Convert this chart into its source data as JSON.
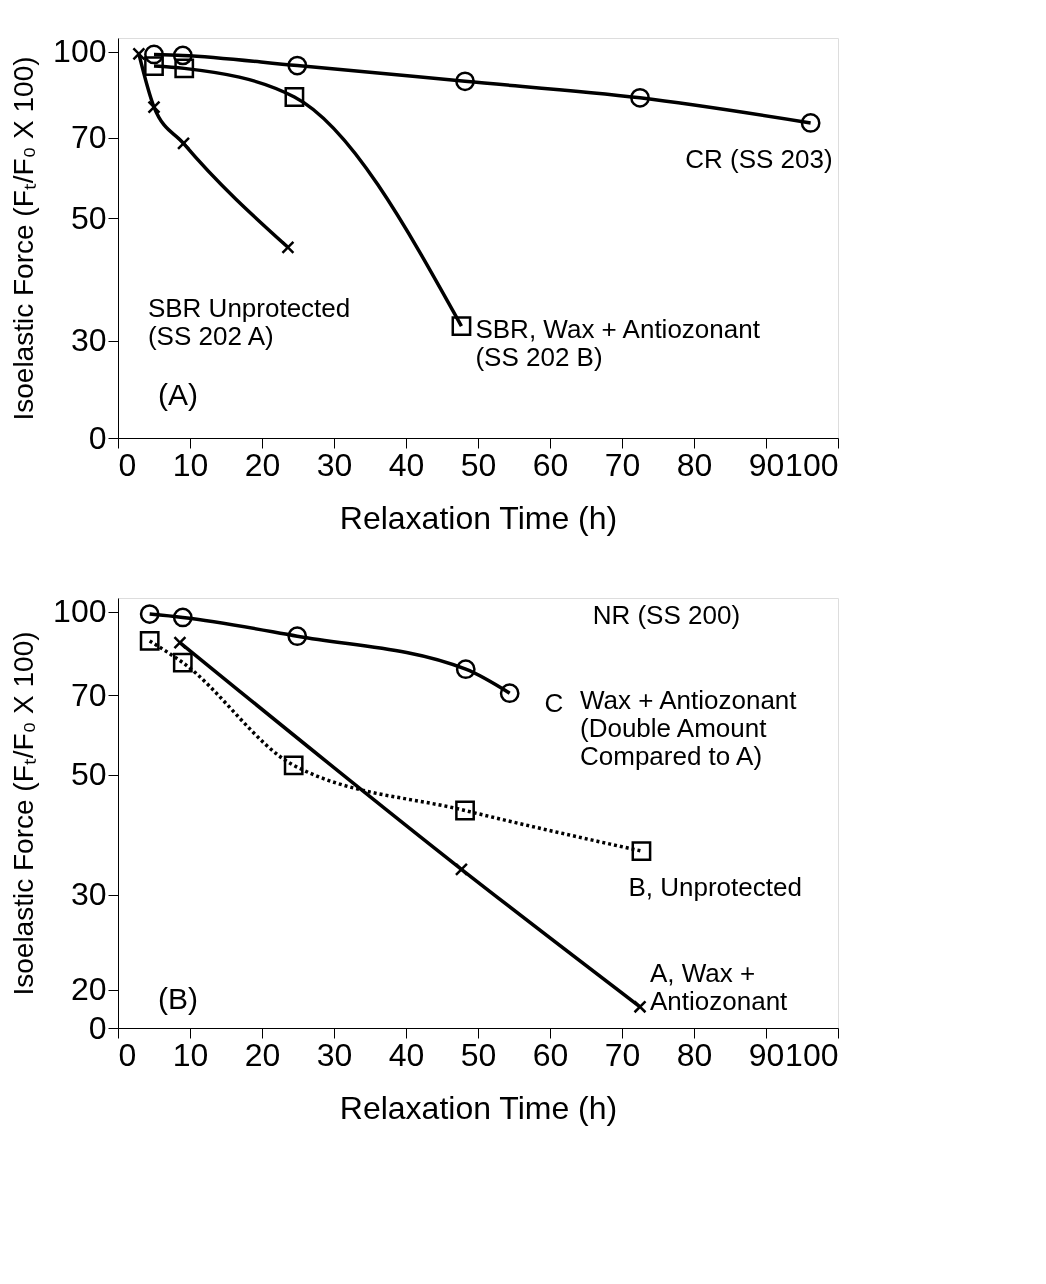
{
  "chart_data": [
    {
      "type": "line",
      "xlabel": "Relaxation Time (h)",
      "ylabel": "Isoelastic Force (Fₜ/F₀ X 100)",
      "log": "y",
      "xlim": [
        0,
        100
      ],
      "xticks": [
        0,
        10,
        20,
        30,
        40,
        50,
        60,
        70,
        80,
        90,
        100
      ],
      "ylim": [
        0,
        106
      ],
      "yticks": [
        0,
        30,
        50,
        70,
        100
      ],
      "grid": false,
      "annotations": [
        "(A)"
      ],
      "series": [
        {
          "name": "CR (SS 203)",
          "color": "#000000",
          "marker": "circle",
          "line_style": "solid",
          "x": [
            5.0,
            9.0,
            24.9,
            48.2,
            72.5,
            96.2
          ],
          "values": [
            99,
            98.6,
            94.5,
            88.5,
            82.6,
            74.4
          ]
        },
        {
          "name": "SBR Unprotected\n(SS 202 A)",
          "color": "#000000",
          "marker": "cross",
          "line_style": "solid",
          "x": [
            2.9,
            5.0,
            9.1,
            23.6
          ],
          "values": [
            99.2,
            79.5,
            68.3,
            44.3
          ]
        },
        {
          "name": "SBR, Wax + Antiozonant\n(SS 202 B)",
          "color": "#000000",
          "marker": "square",
          "line_style": "solid",
          "x": [
            5.0,
            9.2,
            24.5,
            47.7
          ],
          "values": [
            94.3,
            93.4,
            82.9,
            31.9
          ]
        }
      ]
    },
    {
      "type": "line",
      "xlabel": "Relaxation Time (h)",
      "ylabel": "Isoelastic Force (Fₜ/F₀ X 100)",
      "log": "y",
      "xlim": [
        0,
        100
      ],
      "xticks": [
        0,
        10,
        20,
        30,
        40,
        50,
        60,
        70,
        80,
        90,
        100
      ],
      "ylim": [
        0,
        106
      ],
      "yticks": [
        0,
        20,
        30,
        50,
        70,
        100
      ],
      "grid": false,
      "annotations": [
        "(B)",
        "C",
        "Wax + Antiozonant\n(Double Amount\nCompared to A)"
      ],
      "series": [
        {
          "name": "NR (SS 200)",
          "color": "#000000",
          "marker": "circle",
          "line_style": "solid",
          "x": [
            4.4,
            9.0,
            24.9,
            48.3,
            54.4
          ],
          "values": [
            99.0,
            97.6,
            90.1,
            78.3,
            70.7
          ]
        },
        {
          "name": "B, Unprotected",
          "color": "#000000",
          "marker": "square",
          "line_style": "dotted",
          "x": [
            4.4,
            9.0,
            24.4,
            48.2,
            72.7
          ],
          "values": [
            88.3,
            80.5,
            52.0,
            42.9,
            36.1
          ]
        },
        {
          "name": "A, Wax +\nAntiozonant",
          "color": "#000000",
          "marker": "cross",
          "line_style": "solid",
          "x": [
            8.6,
            47.7,
            72.5
          ],
          "values": [
            87.7,
            33.4,
            18.6
          ]
        }
      ]
    }
  ]
}
